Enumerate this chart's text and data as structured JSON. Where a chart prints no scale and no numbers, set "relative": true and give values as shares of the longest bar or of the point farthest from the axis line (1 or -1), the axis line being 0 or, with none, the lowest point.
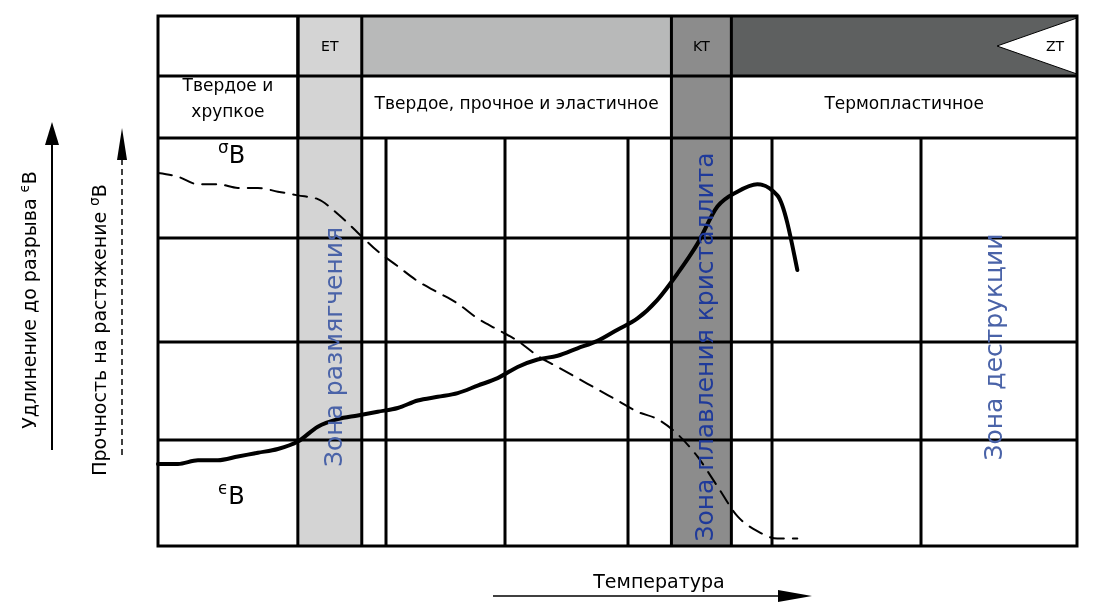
{
  "chart_data": {
    "type": "line",
    "relative": true,
    "xlabel": "Температура",
    "y2label": "Прочность на растяжение $^{σ}$B",
    "categories": [
      null,
      null,
      null,
      null,
      null,
      null,
      null,
      null,
      null,
      null,
      null,
      null,
      null,
      null,
      null,
      null,
      null,
      null,
      null,
      null,
      null,
      null,
      null,
      null,
      null,
      null,
      null,
      null,
      null,
      null,
      null,
      null,
      null,
      null,
      null,
      null,
      null,
      null,
      null,
      null,
      null,
      null,
      null,
      null,
      null,
      null,
      null
    ],
    "series": [
      {
        "name": "$^{σ}$B",
        "color": "#000000",
        "line_style": "dashed",
        "values": [
          1.0,
          0.99,
          0.97,
          0.97,
          0.96,
          0.96,
          0.95,
          0.94,
          0.93,
          0.89,
          0.84,
          0.79,
          0.75,
          0.71,
          0.68,
          0.65,
          0.61,
          0.58,
          0.55,
          0.51,
          0.48,
          0.45,
          0.42,
          0.39,
          0.36,
          0.34,
          0.3,
          0.24,
          0.16,
          0.08,
          0.04,
          0.02,
          0.02,
          null,
          null,
          null,
          null,
          null,
          null,
          null,
          null,
          null,
          null,
          null,
          null,
          null,
          null
        ]
      },
      {
        "name": "$^{ϵ}$B",
        "color": "#000000",
        "line_style": "solid",
        "values": [
          0.22,
          0.22,
          0.23,
          0.23,
          0.24,
          0.25,
          0.26,
          0.28,
          0.32,
          0.34,
          0.35,
          0.36,
          0.37,
          0.39,
          0.4,
          0.41,
          0.43,
          0.45,
          0.48,
          0.5,
          0.51,
          0.53,
          0.55,
          0.58,
          0.61,
          0.66,
          0.73,
          0.81,
          0.91,
          0.95,
          0.97,
          0.94,
          0.74,
          null,
          null,
          null,
          null,
          null,
          null,
          null,
          null,
          null,
          null,
          null,
          null,
          null,
          null
        ]
      }
    ],
    "annotations": [
      "ET",
      "KT",
      "ZT",
      "Твердое и хрупкое",
      "Твердое, прочное и эластичное",
      "Термопластичное",
      "Зона размягчения",
      "Зона плавления кристаллита",
      "Зона деструкции",
      "Удлинение до разрыва $^{ϵ}$B"
    ],
    "grid": true,
    "marker": "none",
    "tick_labels": false
  }
}
